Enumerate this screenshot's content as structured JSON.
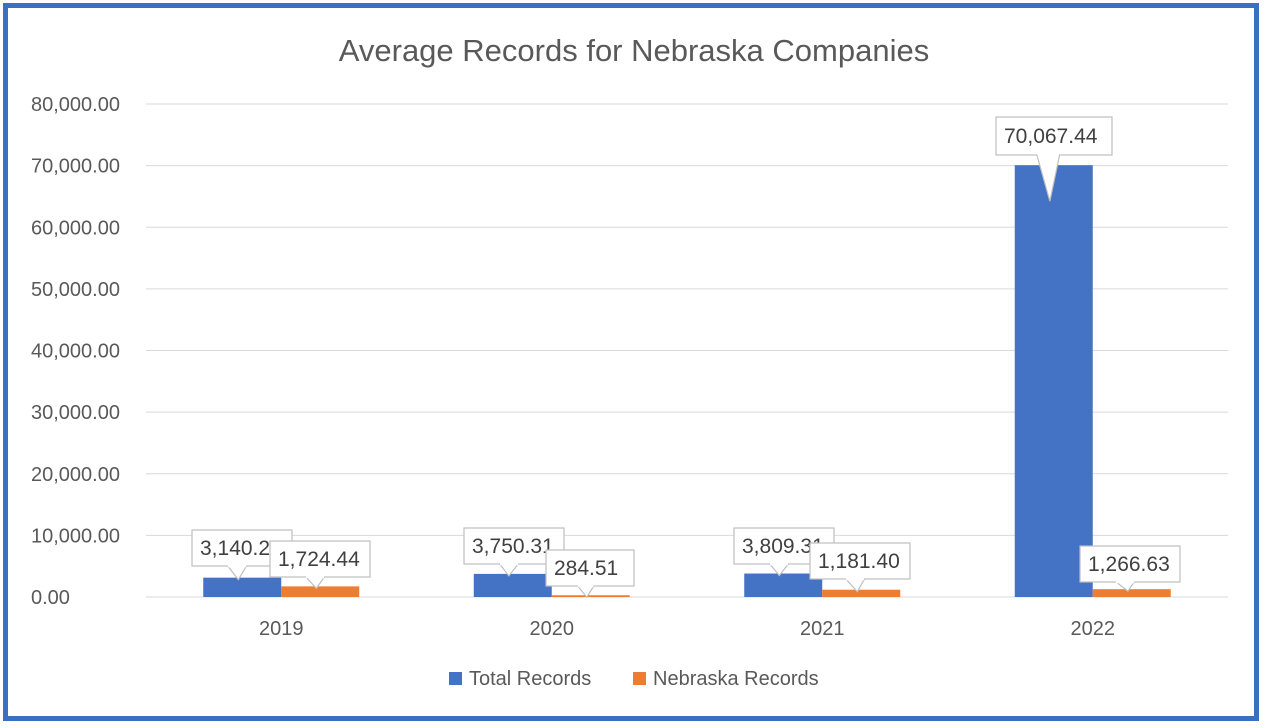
{
  "chart_data": {
    "type": "bar",
    "title": "Average Records for Nebraska Companies",
    "categories": [
      "2019",
      "2020",
      "2021",
      "2022"
    ],
    "series": [
      {
        "name": "Total Records",
        "color": "#4472c4",
        "values": [
          3140.2,
          3750.31,
          3809.31,
          70067.44
        ],
        "labels": [
          "3,140.2",
          "3,750.31",
          "3,809.31",
          "70,067.44"
        ]
      },
      {
        "name": "Nebraska Records",
        "color": "#ed7d31",
        "values": [
          1724.44,
          284.51,
          1181.4,
          1266.63
        ],
        "labels": [
          "1,724.44",
          "284.51",
          "1,181.40",
          "1,266.63"
        ]
      }
    ],
    "ylim": [
      0,
      80000
    ],
    "yticks": [
      "0.00",
      "10,000.00",
      "20,000.00",
      "30,000.00",
      "40,000.00",
      "50,000.00",
      "60,000.00",
      "70,000.00",
      "80,000.00"
    ],
    "grid": true,
    "legend": "bottom",
    "border_color": "#3b6fc0"
  }
}
